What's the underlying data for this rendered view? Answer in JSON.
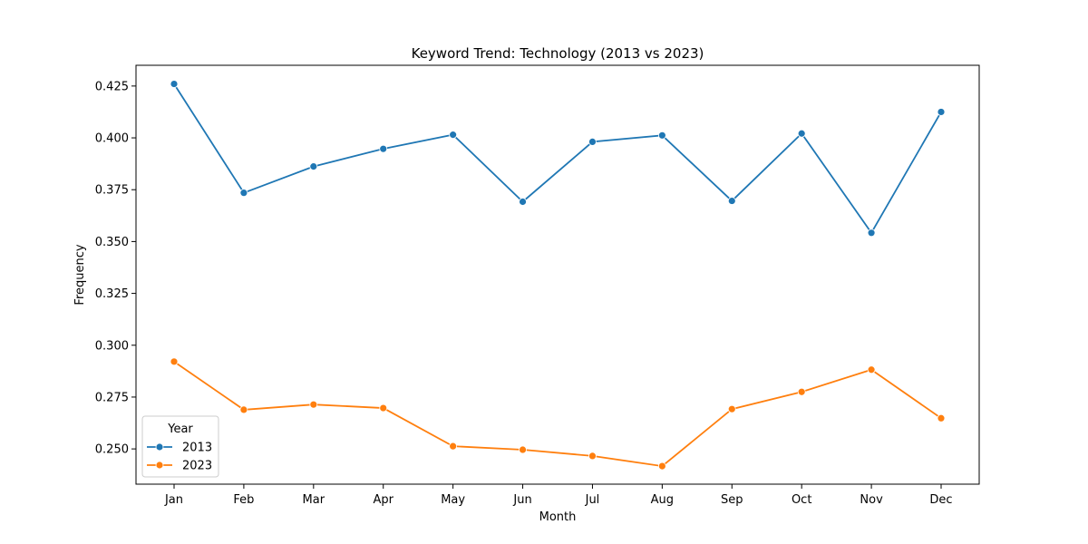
{
  "chart_data": {
    "type": "line",
    "title": "Keyword Trend: Technology (2013 vs 2023)",
    "xlabel": "Month",
    "ylabel": "Frequency",
    "categories": [
      "Jan",
      "Feb",
      "Mar",
      "Apr",
      "May",
      "Jun",
      "Jul",
      "Aug",
      "Sep",
      "Oct",
      "Nov",
      "Dec"
    ],
    "ylim": [
      0.233,
      0.435
    ],
    "yticks": [
      0.25,
      0.275,
      0.3,
      0.325,
      0.35,
      0.375,
      0.4,
      0.425
    ],
    "ytick_labels": [
      "0.250",
      "0.275",
      "0.300",
      "0.325",
      "0.350",
      "0.375",
      "0.400",
      "0.425"
    ],
    "grid": false,
    "legend": {
      "title": "Year",
      "placement": "lower-left"
    },
    "series": [
      {
        "name": "2013",
        "color": "#1f77b4",
        "values": [
          0.426,
          0.3735,
          0.3862,
          0.3947,
          0.4015,
          0.3692,
          0.3981,
          0.4012,
          0.3696,
          0.4021,
          0.3542,
          0.4125
        ]
      },
      {
        "name": "2023",
        "color": "#ff7f0e",
        "values": [
          0.2921,
          0.2689,
          0.2714,
          0.2697,
          0.2513,
          0.2496,
          0.2466,
          0.2417,
          0.2692,
          0.2775,
          0.2882,
          0.2648
        ]
      }
    ]
  }
}
